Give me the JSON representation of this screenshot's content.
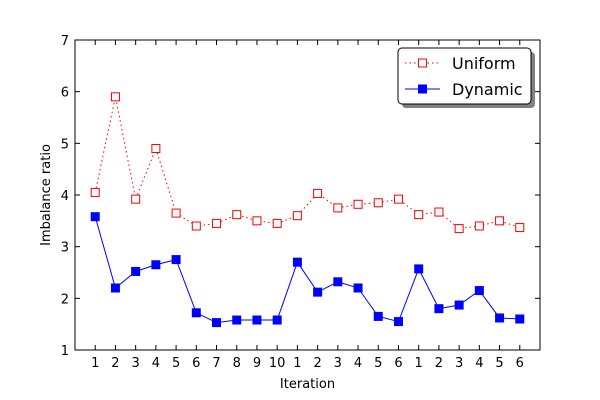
{
  "chart_data": {
    "type": "line",
    "categories": [
      "1",
      "2",
      "3",
      "4",
      "5",
      "6",
      "7",
      "8",
      "9",
      "10",
      "1",
      "2",
      "3",
      "4",
      "5",
      "6",
      "1",
      "2",
      "3",
      "4",
      "5",
      "6"
    ],
    "xlabel": "Iteration",
    "ylabel": "Imbalance ratio",
    "ylim": [
      1,
      7
    ],
    "yticks": [
      1,
      2,
      3,
      4,
      5,
      6,
      7
    ],
    "grid": false,
    "legend_position": "top-right",
    "series": [
      {
        "name": "Uniform",
        "color": "#ff0000",
        "line_style": "dotted",
        "marker": "open-square",
        "values": [
          4.05,
          5.9,
          3.92,
          4.9,
          3.65,
          3.4,
          3.45,
          3.62,
          3.5,
          3.45,
          3.6,
          4.03,
          3.75,
          3.82,
          3.85,
          3.92,
          3.62,
          3.67,
          3.35,
          3.4,
          3.5,
          3.37
        ]
      },
      {
        "name": "Dynamic",
        "color": "#0000ff",
        "line_style": "solid",
        "marker": "filled-square",
        "values": [
          3.58,
          2.2,
          2.52,
          2.65,
          2.75,
          1.72,
          1.53,
          1.58,
          1.58,
          1.58,
          2.7,
          2.12,
          2.32,
          2.2,
          1.65,
          1.55,
          2.57,
          1.8,
          1.87,
          2.15,
          1.62,
          1.6
        ]
      }
    ]
  }
}
